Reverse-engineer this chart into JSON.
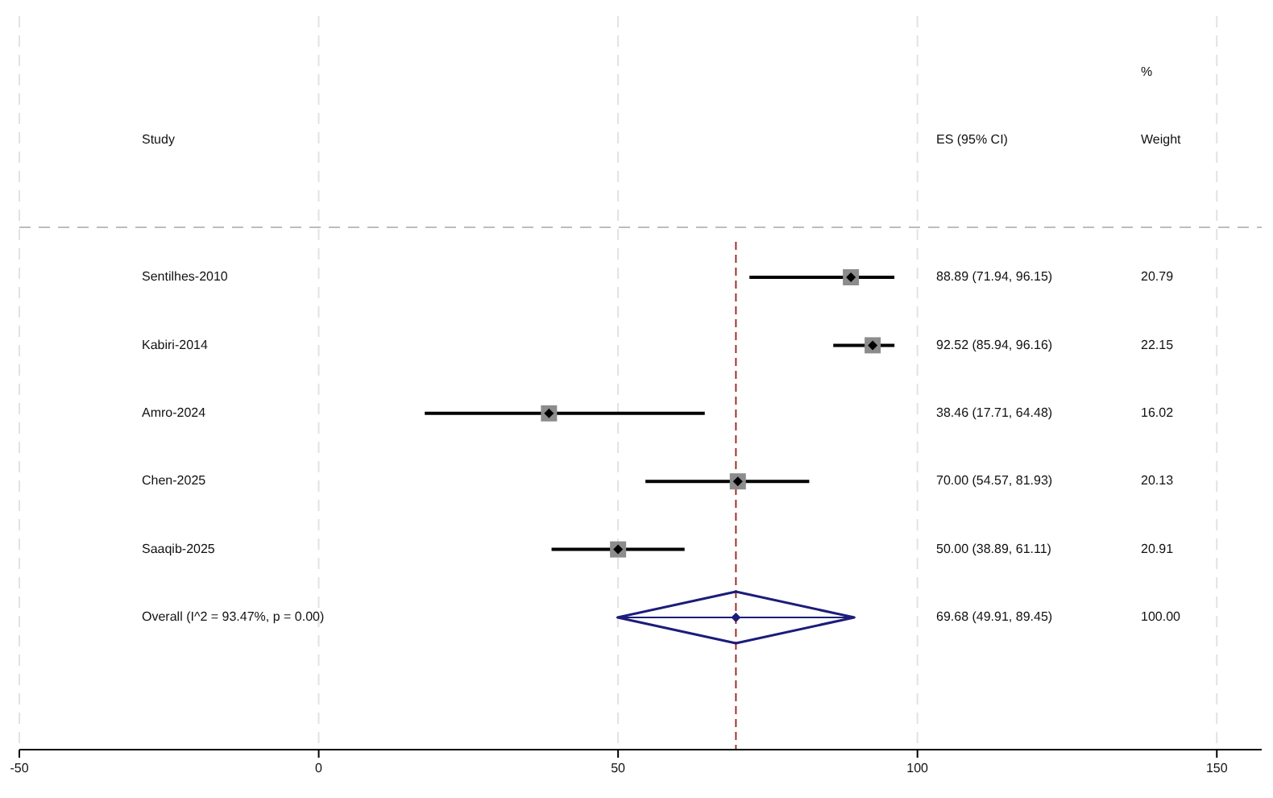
{
  "chart_data": {
    "type": "scatter",
    "orientation": "horizontal",
    "categories": [
      "Sentilhes-2010",
      "Kabiri-2014",
      "Amro-2024",
      "Chen-2025",
      "Saaqib-2025",
      "Overall  (I^2 = 93.47%, p = 0.00)"
    ],
    "series": [
      {
        "color": "#000000",
        "marker": "diamond",
        "values": [
          88.89,
          92.52,
          38.46,
          70.0,
          50.0,
          null
        ],
        "errors": [
          [
            71.94,
            96.15
          ],
          [
            85.94,
            96.16
          ],
          [
            17.71,
            64.48
          ],
          [
            54.57,
            81.93
          ],
          [
            38.89,
            61.11
          ],
          null
        ]
      },
      {
        "color": "#1c1c7a",
        "marker": "diamond",
        "values": [
          null,
          null,
          null,
          null,
          null,
          69.68
        ],
        "errors": [
          null,
          null,
          null,
          null,
          null,
          [
            49.91,
            89.45
          ]
        ]
      }
    ],
    "y2_categories": [
      "88.89 (71.94, 96.15)",
      "92.52 (85.94, 96.16)",
      "38.46 (17.71, 64.48)",
      "70.00 (54.57, 81.93)",
      "50.00 (38.89, 61.11)",
      "69.68 (49.91, 89.45)"
    ],
    "annotations": [
      "Study",
      "ES (95% CI)",
      "%\nWeight",
      "20.79",
      "22.15",
      "16.02",
      "20.13",
      "20.91",
      "100.00"
    ],
    "xlim": [
      -50,
      157.5
    ],
    "xticks": [
      -50,
      0,
      50,
      100,
      150
    ],
    "grid": "x",
    "ref_lines": [
      {
        "axis": "x",
        "value": 69.68,
        "color": "#a0302a",
        "line_style": "dashed"
      }
    ]
  }
}
